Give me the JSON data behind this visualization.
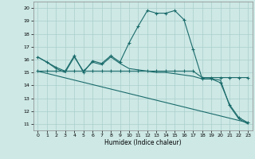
{
  "xlabel": "Humidex (Indice chaleur)",
  "xlim": [
    -0.5,
    23.5
  ],
  "ylim": [
    10.5,
    20.5
  ],
  "yticks": [
    11,
    12,
    13,
    14,
    15,
    16,
    17,
    18,
    19,
    20
  ],
  "xticks": [
    0,
    1,
    2,
    3,
    4,
    5,
    6,
    7,
    8,
    9,
    10,
    11,
    12,
    13,
    14,
    15,
    16,
    17,
    18,
    19,
    20,
    21,
    22,
    23
  ],
  "bg_color": "#cde8e5",
  "grid_color": "#aacfcc",
  "line_color": "#1a6b6b",
  "line1_x": [
    0,
    1,
    2,
    3,
    4,
    5,
    6,
    7,
    8,
    9,
    10,
    11,
    12,
    13,
    14,
    15,
    16,
    17,
    18,
    19,
    20,
    21,
    22,
    23
  ],
  "line1_y": [
    16.2,
    15.8,
    15.4,
    15.1,
    16.3,
    15.0,
    15.9,
    15.7,
    16.3,
    15.8,
    17.3,
    18.6,
    19.8,
    19.6,
    19.6,
    19.8,
    19.1,
    16.8,
    14.5,
    14.5,
    14.2,
    12.5,
    11.5,
    11.1
  ],
  "line2_x": [
    0,
    1,
    2,
    3,
    4,
    5,
    6,
    7,
    8,
    9,
    10,
    11,
    12,
    13,
    14,
    15,
    16,
    17,
    18,
    19,
    20,
    21,
    22,
    23
  ],
  "line2_y": [
    15.1,
    15.1,
    15.1,
    15.1,
    15.1,
    15.1,
    15.1,
    15.1,
    15.1,
    15.1,
    15.1,
    15.1,
    15.1,
    15.1,
    15.1,
    15.1,
    15.1,
    15.1,
    14.6,
    14.6,
    14.6,
    14.6,
    14.6,
    14.6
  ],
  "line3_x": [
    0,
    1,
    2,
    3,
    4,
    5,
    6,
    7,
    8,
    9,
    10,
    11,
    12,
    13,
    14,
    15,
    16,
    17,
    18,
    19,
    20,
    21,
    22,
    23
  ],
  "line3_y": [
    16.2,
    15.8,
    15.3,
    15.0,
    16.2,
    15.1,
    15.8,
    15.6,
    16.2,
    15.7,
    15.3,
    15.2,
    15.1,
    15.0,
    15.0,
    14.9,
    14.8,
    14.7,
    14.5,
    14.5,
    14.4,
    12.4,
    11.4,
    11.0
  ],
  "line4_x": [
    0,
    23
  ],
  "line4_y": [
    15.1,
    11.1
  ]
}
